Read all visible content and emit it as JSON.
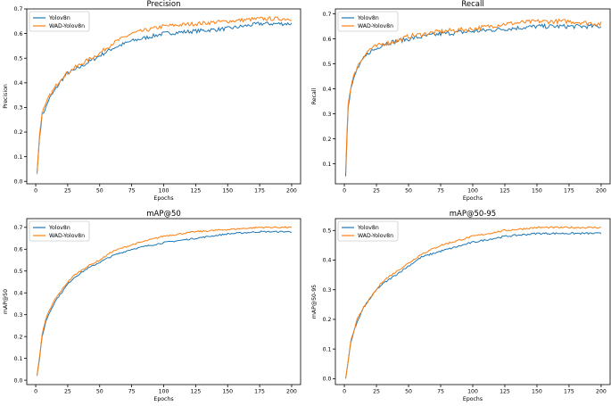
{
  "colors": {
    "yolov8n": "#1f77b4",
    "wad": "#ff7f0e",
    "axis": "#000000",
    "background": "#ffffff"
  },
  "chart_data": [
    {
      "type": "line",
      "title": "Precision",
      "xlabel": "Epochs",
      "ylabel": "Precision",
      "xlim": [
        -7,
        207
      ],
      "ylim": [
        -0.01,
        0.7
      ],
      "xticks": [
        0,
        25,
        50,
        75,
        100,
        125,
        150,
        175,
        200
      ],
      "yticks": [
        0.0,
        0.1,
        0.2,
        0.3,
        0.4,
        0.5,
        0.6,
        0.7
      ],
      "ytick_labels": [
        "0.0",
        "0.1",
        "0.2",
        "0.3",
        "0.4",
        "0.5",
        "0.6",
        "0.7"
      ],
      "legend_position": "top-left",
      "series": [
        {
          "name": "Yolov8n",
          "x": [
            1,
            3,
            5,
            8,
            10,
            15,
            20,
            25,
            30,
            40,
            50,
            60,
            75,
            100,
            125,
            150,
            175,
            200
          ],
          "values": [
            0.03,
            0.18,
            0.27,
            0.3,
            0.33,
            0.37,
            0.41,
            0.44,
            0.45,
            0.48,
            0.51,
            0.54,
            0.57,
            0.6,
            0.61,
            0.62,
            0.64,
            0.64
          ]
        },
        {
          "name": "WAD-Yolov8n",
          "x": [
            1,
            3,
            5,
            8,
            10,
            15,
            20,
            25,
            30,
            40,
            50,
            60,
            75,
            100,
            125,
            150,
            175,
            200
          ],
          "values": [
            0.03,
            0.19,
            0.28,
            0.31,
            0.34,
            0.38,
            0.42,
            0.44,
            0.46,
            0.49,
            0.52,
            0.56,
            0.6,
            0.63,
            0.64,
            0.65,
            0.66,
            0.66
          ]
        }
      ]
    },
    {
      "type": "line",
      "title": "Recall",
      "xlabel": "Epochs",
      "ylabel": "Recall",
      "xlim": [
        -7,
        207
      ],
      "ylim": [
        0.02,
        0.72
      ],
      "xticks": [
        0,
        25,
        50,
        75,
        100,
        125,
        150,
        175,
        200
      ],
      "yticks": [
        0.1,
        0.2,
        0.3,
        0.4,
        0.5,
        0.6,
        0.7
      ],
      "ytick_labels": [
        "0.1",
        "0.2",
        "0.3",
        "0.4",
        "0.5",
        "0.6",
        "0.7"
      ],
      "legend_position": "top-left",
      "series": [
        {
          "name": "Yolov8n",
          "x": [
            1,
            2,
            3,
            5,
            8,
            10,
            15,
            20,
            25,
            30,
            40,
            50,
            75,
            100,
            125,
            150,
            175,
            200
          ],
          "values": [
            0.05,
            0.2,
            0.33,
            0.4,
            0.45,
            0.48,
            0.52,
            0.55,
            0.56,
            0.58,
            0.59,
            0.6,
            0.62,
            0.63,
            0.64,
            0.65,
            0.65,
            0.65
          ]
        },
        {
          "name": "WAD-Yolov8n",
          "x": [
            1,
            2,
            3,
            5,
            8,
            10,
            15,
            20,
            25,
            30,
            40,
            50,
            75,
            100,
            125,
            150,
            175,
            200
          ],
          "values": [
            0.07,
            0.22,
            0.34,
            0.41,
            0.46,
            0.49,
            0.53,
            0.56,
            0.57,
            0.58,
            0.59,
            0.61,
            0.63,
            0.64,
            0.66,
            0.67,
            0.67,
            0.66
          ]
        }
      ]
    },
    {
      "type": "line",
      "title": "mAP@50",
      "xlabel": "Epochs",
      "ylabel": "mAP@50",
      "xlim": [
        -7,
        207
      ],
      "ylim": [
        -0.02,
        0.74
      ],
      "xticks": [
        0,
        25,
        50,
        75,
        100,
        125,
        150,
        175,
        200
      ],
      "yticks": [
        0.0,
        0.1,
        0.2,
        0.3,
        0.4,
        0.5,
        0.6,
        0.7
      ],
      "ytick_labels": [
        "0.0",
        "0.1",
        "0.2",
        "0.3",
        "0.4",
        "0.5",
        "0.6",
        "0.7"
      ],
      "legend_position": "top-left",
      "series": [
        {
          "name": "Yolov8n",
          "x": [
            1,
            3,
            5,
            8,
            10,
            15,
            20,
            25,
            30,
            40,
            50,
            60,
            75,
            100,
            125,
            150,
            175,
            200
          ],
          "values": [
            0.02,
            0.1,
            0.2,
            0.27,
            0.3,
            0.36,
            0.4,
            0.44,
            0.47,
            0.51,
            0.54,
            0.57,
            0.6,
            0.63,
            0.65,
            0.67,
            0.68,
            0.68
          ]
        },
        {
          "name": "WAD-Yolov8n",
          "x": [
            1,
            3,
            5,
            8,
            10,
            15,
            20,
            25,
            30,
            40,
            50,
            60,
            75,
            100,
            125,
            150,
            175,
            200
          ],
          "values": [
            0.02,
            0.11,
            0.21,
            0.28,
            0.31,
            0.37,
            0.41,
            0.45,
            0.48,
            0.52,
            0.55,
            0.59,
            0.62,
            0.66,
            0.68,
            0.69,
            0.7,
            0.7
          ]
        }
      ]
    },
    {
      "type": "line",
      "title": "mAP@50-95",
      "xlabel": "Epochs",
      "ylabel": "mAP@50-95",
      "xlim": [
        -7,
        207
      ],
      "ylim": [
        -0.02,
        0.54
      ],
      "xticks": [
        0,
        25,
        50,
        75,
        100,
        125,
        150,
        175,
        200
      ],
      "yticks": [
        0.0,
        0.1,
        0.2,
        0.3,
        0.4,
        0.5
      ],
      "ytick_labels": [
        "0.0",
        "0.1",
        "0.2",
        "0.3",
        "0.4",
        "0.5"
      ],
      "legend_position": "top-left",
      "series": [
        {
          "name": "Yolov8n",
          "x": [
            1,
            3,
            5,
            8,
            10,
            15,
            20,
            25,
            30,
            40,
            50,
            60,
            75,
            100,
            125,
            150,
            175,
            200
          ],
          "values": [
            0.0,
            0.06,
            0.12,
            0.17,
            0.19,
            0.24,
            0.27,
            0.3,
            0.32,
            0.35,
            0.38,
            0.41,
            0.43,
            0.46,
            0.48,
            0.49,
            0.49,
            0.49
          ]
        },
        {
          "name": "WAD-Yolov8n",
          "x": [
            1,
            3,
            5,
            8,
            10,
            15,
            20,
            25,
            30,
            40,
            50,
            60,
            75,
            100,
            125,
            150,
            175,
            200
          ],
          "values": [
            0.0,
            0.06,
            0.13,
            0.17,
            0.2,
            0.24,
            0.27,
            0.3,
            0.33,
            0.36,
            0.39,
            0.42,
            0.45,
            0.48,
            0.5,
            0.51,
            0.51,
            0.51
          ]
        }
      ]
    }
  ]
}
